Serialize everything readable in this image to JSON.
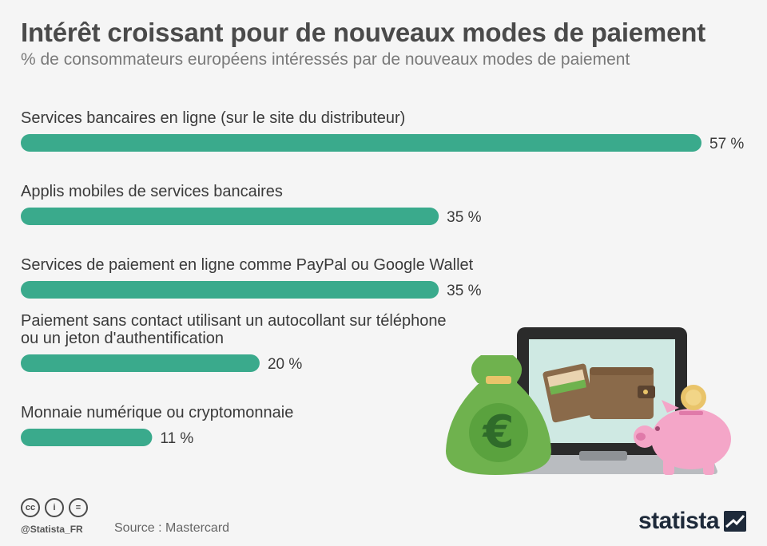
{
  "header": {
    "title": "Intérêt croissant pour de nouveaux modes de paiement",
    "subtitle": "% de consommateurs européens intéressés par de nouveaux modes de paiement"
  },
  "chart_data": {
    "type": "bar",
    "orientation": "horizontal",
    "title": "Intérêt croissant pour de nouveaux modes de paiement",
    "subtitle": "% de consommateurs européens intéressés par de nouveaux modes de paiement",
    "categories": [
      "Services bancaires en ligne (sur le site du distributeur)",
      "Applis mobiles de services bancaires",
      "Services de paiement en ligne comme PayPal ou Google Wallet",
      "Paiement sans contact utilisant un autocollant sur téléphone ou un jeton d'authentification",
      "Monnaie numérique ou cryptomonnaie"
    ],
    "label_lines": [
      [
        "Services bancaires en ligne (sur le site du distributeur)"
      ],
      [
        "Applis mobiles de services bancaires"
      ],
      [
        "Services de paiement en ligne comme PayPal ou Google Wallet"
      ],
      [
        "Paiement sans contact utilisant un autocollant sur téléphone",
        "ou un jeton d'authentification"
      ],
      [
        "Monnaie numérique ou cryptomonnaie"
      ]
    ],
    "values": [
      57,
      35,
      35,
      20,
      11
    ],
    "value_labels": [
      "57 %",
      "35 %",
      "35 %",
      "20 %",
      "11 %"
    ],
    "unit": "%",
    "xlim": [
      0,
      57
    ],
    "bar_color": "#3aaa8c",
    "grid": false
  },
  "footer": {
    "license_icons": [
      "cc-icon",
      "attribution-icon",
      "no-derivatives-icon"
    ],
    "license_glyphs": [
      "cc",
      "i",
      "="
    ],
    "handle": "@Statista_FR",
    "source": "Source : Mastercard",
    "brand": "statista"
  },
  "illustration": {
    "icons": [
      "money-bag-icon",
      "laptop-icon",
      "wallet-icon",
      "piggy-bank-icon",
      "coin-icon"
    ],
    "bag_symbol": "€"
  }
}
